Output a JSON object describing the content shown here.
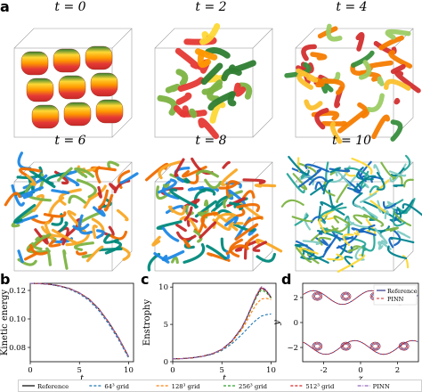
{
  "panels": {
    "a": "a",
    "b": "b",
    "c": "c",
    "d": "d"
  },
  "snapshots": [
    {
      "label": "t = 0",
      "style": "initial"
    },
    {
      "label": "t = 2",
      "style": "early"
    },
    {
      "label": "t = 4",
      "style": "mid"
    },
    {
      "label": "t = 6",
      "style": "dense"
    },
    {
      "label": "t = 8",
      "style": "dense"
    },
    {
      "label": "t = 10",
      "style": "turbulent"
    }
  ],
  "chart_data": [
    {
      "type": "line",
      "panel": "b",
      "xlabel": "t",
      "ylabel": "Kinetic energy",
      "xlim": [
        0,
        10.5
      ],
      "ylim": [
        0.07,
        0.125
      ],
      "xticks": [
        0,
        5,
        10
      ],
      "yticks": [
        0.08,
        0.1,
        0.12
      ],
      "ytick_labels": [
        "0.08",
        "0.10",
        "0.12"
      ],
      "x": [
        0,
        1,
        2,
        3,
        4,
        5,
        6,
        7,
        8,
        9,
        10
      ],
      "series": [
        {
          "name": "Reference",
          "color": "#000000",
          "dash": "solid",
          "values": [
            0.125,
            0.1248,
            0.1243,
            0.1232,
            0.1213,
            0.1183,
            0.1138,
            0.1068,
            0.0975,
            0.0865,
            0.0735
          ]
        },
        {
          "name": "64³ grid",
          "color": "#1f77b4",
          "dash": "dashed",
          "values": [
            0.125,
            0.1247,
            0.1241,
            0.1229,
            0.1208,
            0.1176,
            0.1128,
            0.1056,
            0.0962,
            0.0852,
            0.0725
          ]
        },
        {
          "name": "128³ grid",
          "color": "#ff7f0e",
          "dash": "dashed",
          "values": [
            0.125,
            0.1248,
            0.1243,
            0.1231,
            0.1212,
            0.1182,
            0.1136,
            0.1066,
            0.0973,
            0.0863,
            0.0733
          ]
        },
        {
          "name": "256³ grid",
          "color": "#2ca02c",
          "dash": "dashed",
          "values": [
            0.125,
            0.1248,
            0.1243,
            0.1232,
            0.1213,
            0.1183,
            0.1138,
            0.1068,
            0.0975,
            0.0865,
            0.0735
          ]
        },
        {
          "name": "512³ grid",
          "color": "#d62728",
          "dash": "dashed",
          "values": [
            0.125,
            0.1248,
            0.1243,
            0.1232,
            0.1213,
            0.1183,
            0.1138,
            0.1068,
            0.0975,
            0.0865,
            0.0735
          ]
        },
        {
          "name": "PINN",
          "color": "#9467bd",
          "dash": "dashdot",
          "values": [
            0.125,
            0.1248,
            0.1243,
            0.1232,
            0.1213,
            0.1183,
            0.1137,
            0.1067,
            0.0974,
            0.0864,
            0.0734
          ]
        }
      ]
    },
    {
      "type": "line",
      "panel": "c",
      "xlabel": "t",
      "ylabel": "Enstrophy",
      "xlim": [
        0,
        10.5
      ],
      "ylim": [
        0,
        10.5
      ],
      "xticks": [
        0,
        5,
        10
      ],
      "yticks": [
        0,
        5,
        10
      ],
      "ytick_labels": [
        "0",
        "5",
        "10"
      ],
      "x": [
        0,
        1,
        2,
        3,
        4,
        5,
        6,
        7,
        7.5,
        8,
        8.5,
        9,
        9.5,
        10
      ],
      "series": [
        {
          "name": "Reference",
          "color": "#000000",
          "dash": "solid",
          "values": [
            0.38,
            0.42,
            0.52,
            0.72,
            1.05,
            1.65,
            2.75,
            4.5,
            5.8,
            7.3,
            8.8,
            9.9,
            9.5,
            8.6
          ]
        },
        {
          "name": "64³ grid",
          "color": "#1f77b4",
          "dash": "dashed",
          "values": [
            0.38,
            0.41,
            0.5,
            0.68,
            0.98,
            1.5,
            2.4,
            3.6,
            4.3,
            5.0,
            5.6,
            6.1,
            6.3,
            6.4
          ]
        },
        {
          "name": "128³ grid",
          "color": "#ff7f0e",
          "dash": "dashed",
          "values": [
            0.38,
            0.42,
            0.51,
            0.71,
            1.03,
            1.6,
            2.65,
            4.25,
            5.35,
            6.6,
            7.7,
            8.4,
            8.5,
            8.3
          ]
        },
        {
          "name": "256³ grid",
          "color": "#2ca02c",
          "dash": "dashed",
          "values": [
            0.38,
            0.42,
            0.52,
            0.72,
            1.05,
            1.64,
            2.73,
            4.45,
            5.7,
            7.15,
            8.6,
            9.6,
            9.3,
            8.5
          ]
        },
        {
          "name": "512³ grid",
          "color": "#d62728",
          "dash": "dashed",
          "values": [
            0.38,
            0.42,
            0.52,
            0.72,
            1.05,
            1.65,
            2.75,
            4.5,
            5.8,
            7.3,
            8.8,
            9.9,
            9.5,
            8.6
          ]
        },
        {
          "name": "PINN",
          "color": "#9467bd",
          "dash": "dashdot",
          "values": [
            0.38,
            0.42,
            0.52,
            0.72,
            1.05,
            1.66,
            2.78,
            4.55,
            5.85,
            7.4,
            8.95,
            10.1,
            9.6,
            8.7
          ]
        }
      ]
    },
    {
      "type": "line",
      "panel": "d",
      "xlabel": "z",
      "ylabel": "y",
      "xlim": [
        -3.14,
        3.14
      ],
      "ylim": [
        -3.14,
        3.14
      ],
      "xticks": [
        -2,
        0,
        2
      ],
      "yticks": [
        -2,
        0,
        2
      ],
      "ytick_labels": [
        "−2",
        "0",
        "2"
      ],
      "series": [
        {
          "name": "Reference",
          "color": "#1a237e",
          "dash": "solid"
        },
        {
          "name": "PINN",
          "color": "#d62728",
          "dash": "dashed"
        }
      ]
    }
  ],
  "legend": {
    "entries": [
      {
        "label": "Reference",
        "color": "#000000",
        "dash": "solid"
      },
      {
        "label": "64³ grid",
        "color": "#1f77b4",
        "dash": "dashed"
      },
      {
        "label": "128³ grid",
        "color": "#ff7f0e",
        "dash": "dashed"
      },
      {
        "label": "256³ grid",
        "color": "#2ca02c",
        "dash": "dashed"
      },
      {
        "label": "512³ grid",
        "color": "#d62728",
        "dash": "dashed"
      },
      {
        "label": "PINN",
        "color": "#9467bd",
        "dash": "dashdot"
      }
    ]
  }
}
